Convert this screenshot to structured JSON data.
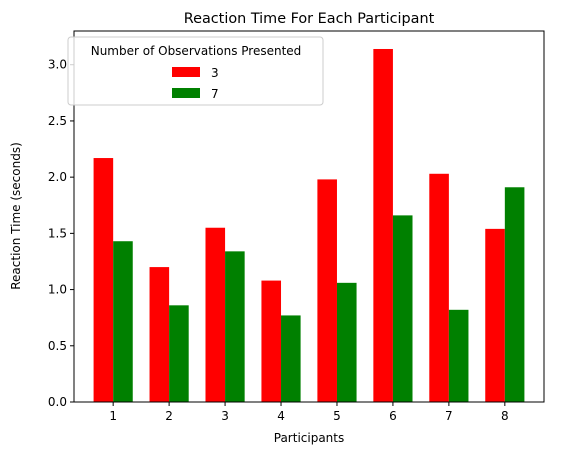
{
  "chart_data": {
    "type": "bar",
    "title": "Reaction Time For Each Participant",
    "xlabel": "Participants",
    "ylabel": "Reaction Time (seconds)",
    "categories": [
      "1",
      "2",
      "3",
      "4",
      "5",
      "6",
      "7",
      "8"
    ],
    "series": [
      {
        "name": "3",
        "color": "#ff0000",
        "values": [
          2.17,
          1.2,
          1.55,
          1.08,
          1.98,
          3.14,
          2.03,
          1.54
        ]
      },
      {
        "name": "7",
        "color": "#008000",
        "values": [
          1.43,
          0.86,
          1.34,
          0.77,
          1.06,
          1.66,
          0.82,
          1.91
        ]
      }
    ],
    "ylim": [
      0,
      3.3
    ],
    "yticks": [
      "0.0",
      "0.5",
      "1.0",
      "1.5",
      "2.0",
      "2.5",
      "3.0"
    ],
    "legend": {
      "title": "Number of Observations Presented",
      "location": "top-left"
    },
    "grid": false
  }
}
